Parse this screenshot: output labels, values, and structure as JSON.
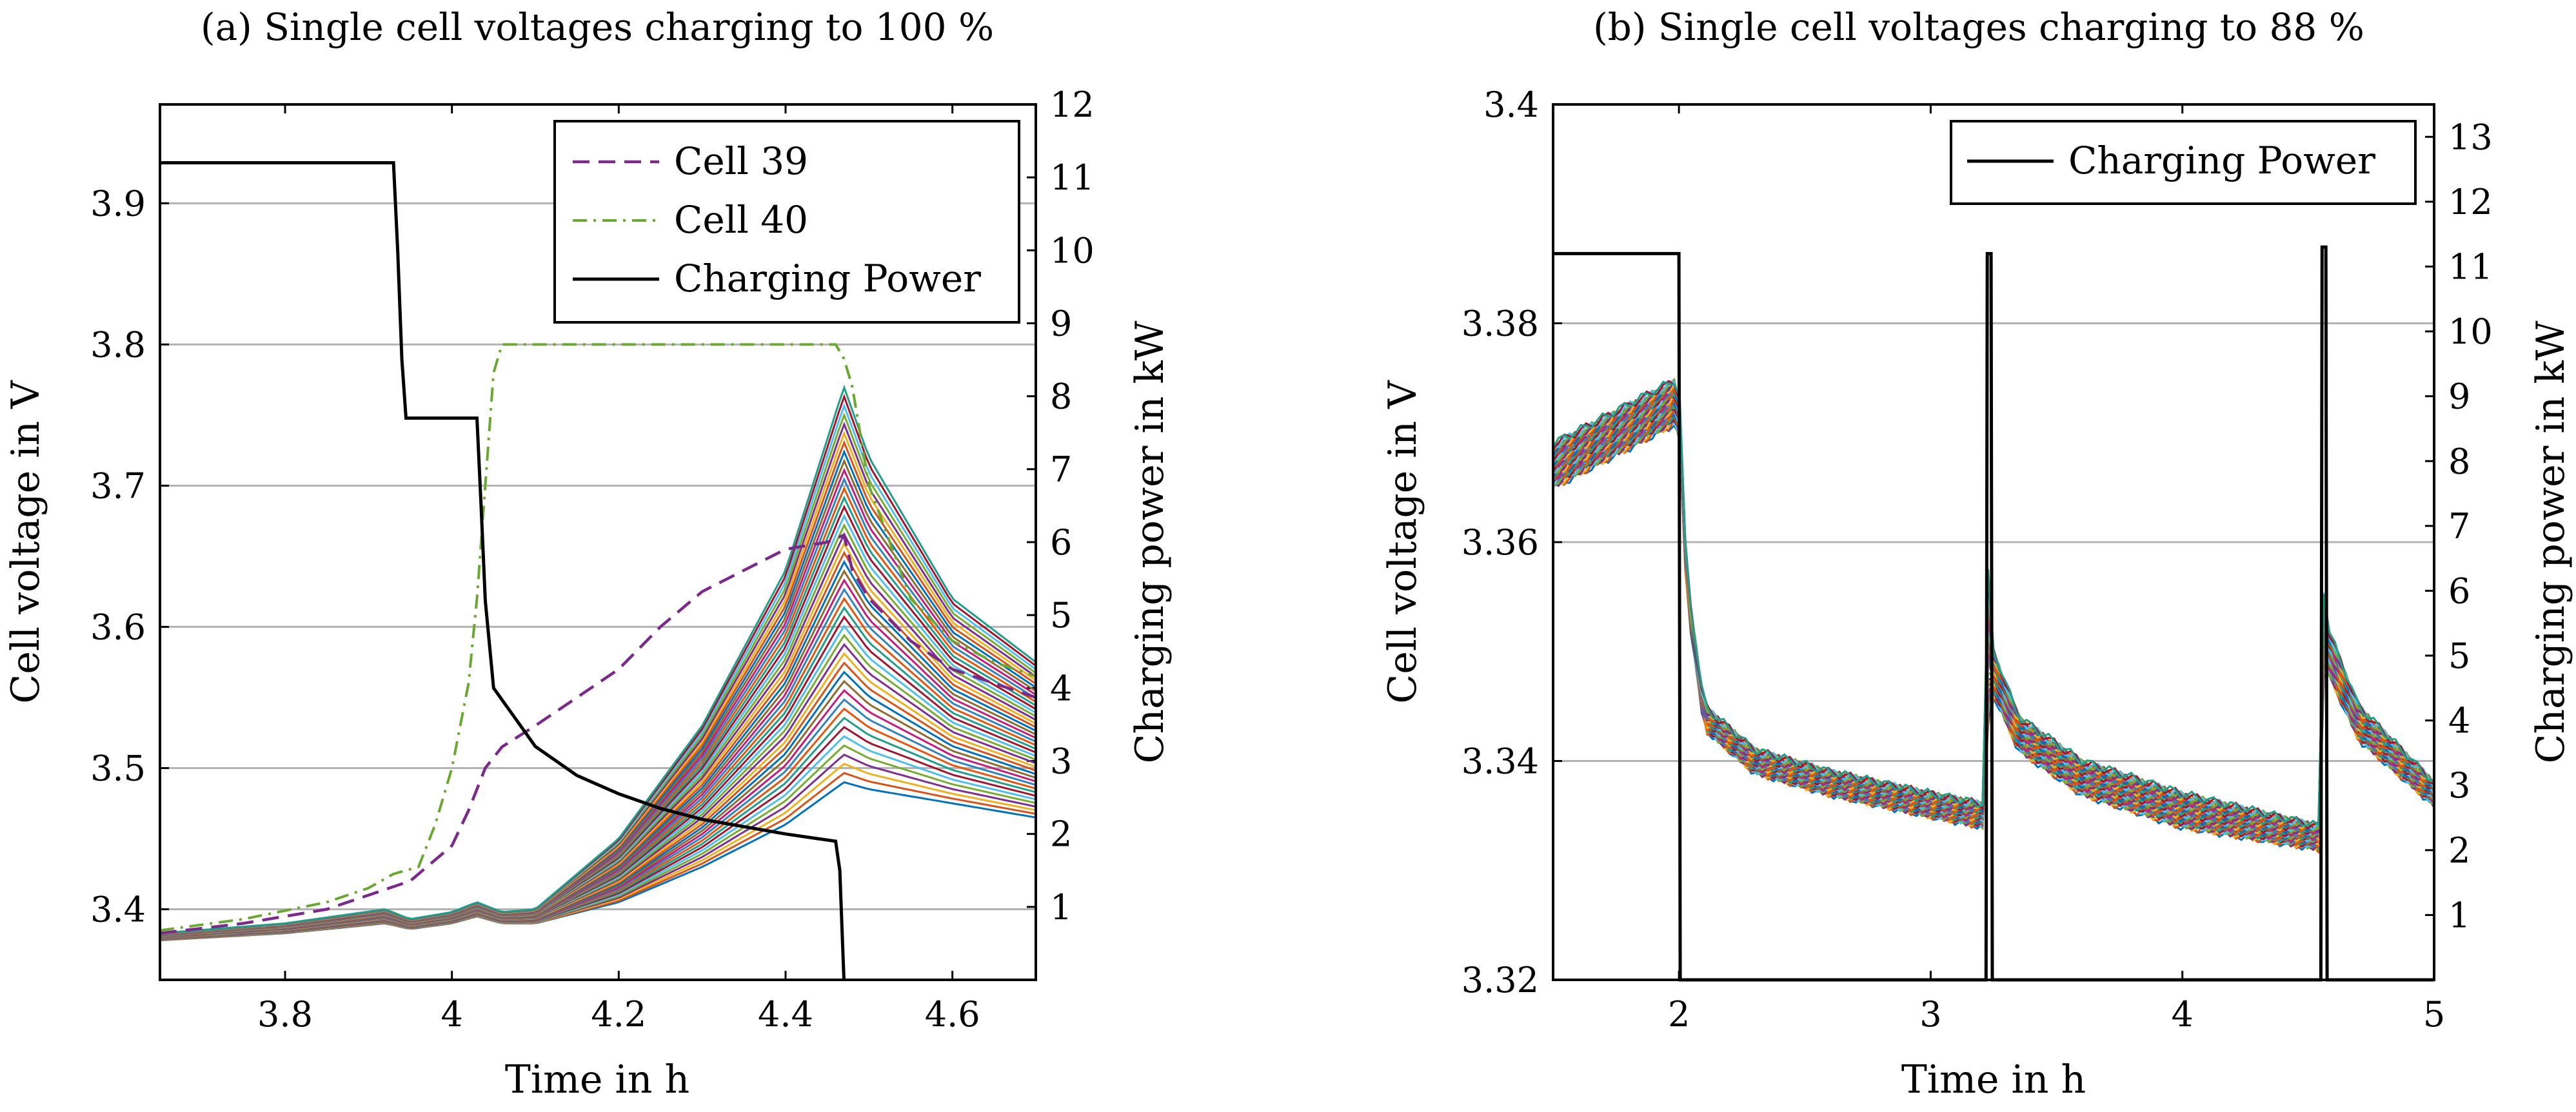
{
  "chart_data": [
    {
      "type": "line",
      "title": "(a) Single cell voltages charging to 100 %",
      "xlabel": "Time in h",
      "ylabel": "Cell voltage in V",
      "y2label": "Charging power in kW",
      "xlim": [
        3.65,
        4.7
      ],
      "ylim": [
        3.35,
        3.97
      ],
      "y2lim": [
        0,
        12
      ],
      "xticks": [
        "3.8",
        "4",
        "4.2",
        "4.4",
        "4.6"
      ],
      "yticks": [
        "3.4",
        "3.5",
        "3.6",
        "3.7",
        "3.8",
        "3.9"
      ],
      "y2ticks": [
        "1",
        "2",
        "3",
        "4",
        "5",
        "6",
        "7",
        "8",
        "9",
        "10",
        "11",
        "12"
      ],
      "grid": true,
      "legend_position": "top-right",
      "legend": [
        "Cell 39",
        "Cell 40",
        "Charging Power"
      ],
      "series": [
        {
          "name": "Cell 39",
          "axis": "left",
          "style": "dashed",
          "color": "#7b2a8c",
          "x": [
            3.65,
            3.75,
            3.85,
            3.9,
            3.95,
            4.0,
            4.02,
            4.04,
            4.06,
            4.1,
            4.15,
            4.2,
            4.25,
            4.3,
            4.35,
            4.4,
            4.45,
            4.47,
            4.48,
            4.5,
            4.55,
            4.6,
            4.65,
            4.7
          ],
          "values": [
            3.383,
            3.39,
            3.4,
            3.41,
            3.42,
            3.445,
            3.47,
            3.5,
            3.515,
            3.53,
            3.55,
            3.57,
            3.6,
            3.625,
            3.64,
            3.655,
            3.66,
            3.665,
            3.64,
            3.62,
            3.59,
            3.57,
            3.56,
            3.55
          ]
        },
        {
          "name": "Cell 40",
          "axis": "left",
          "style": "dashdot",
          "color": "#6aa832",
          "x": [
            3.65,
            3.75,
            3.85,
            3.9,
            3.93,
            3.96,
            3.98,
            4.0,
            4.02,
            4.03,
            4.04,
            4.05,
            4.06,
            4.1,
            4.2,
            4.3,
            4.4,
            4.46,
            4.47,
            4.48,
            4.5,
            4.55,
            4.6,
            4.65,
            4.7
          ],
          "values": [
            3.385,
            3.393,
            3.405,
            3.415,
            3.425,
            3.43,
            3.46,
            3.5,
            3.56,
            3.62,
            3.7,
            3.78,
            3.8,
            3.8,
            3.8,
            3.8,
            3.8,
            3.8,
            3.79,
            3.77,
            3.7,
            3.62,
            3.59,
            3.575,
            3.565
          ]
        },
        {
          "name": "Charging Power",
          "axis": "right",
          "style": "solid",
          "color": "#000000",
          "x": [
            3.65,
            3.93,
            3.935,
            3.94,
            3.945,
            4.03,
            4.035,
            4.04,
            4.05,
            4.1,
            4.15,
            4.2,
            4.25,
            4.3,
            4.35,
            4.4,
            4.46,
            4.465,
            4.47
          ],
          "values": [
            11.2,
            11.2,
            10.0,
            8.5,
            7.7,
            7.7,
            6.5,
            5.2,
            4.0,
            3.2,
            2.8,
            2.55,
            2.35,
            2.2,
            2.1,
            2.0,
            1.9,
            1.5,
            0.0
          ]
        }
      ],
      "cell_bundle": {
        "description_count": 96,
        "note": "many unlabeled single-cell voltage traces",
        "x": [
          3.65,
          3.8,
          3.92,
          3.95,
          4.0,
          4.03,
          4.06,
          4.1,
          4.2,
          4.3,
          4.4,
          4.47,
          4.5,
          4.6,
          4.7
        ],
        "low_values": [
          3.378,
          3.383,
          3.39,
          3.386,
          3.39,
          3.395,
          3.39,
          3.39,
          3.405,
          3.43,
          3.46,
          3.49,
          3.485,
          3.475,
          3.465
        ],
        "high_values": [
          3.383,
          3.39,
          3.4,
          3.393,
          3.398,
          3.405,
          3.398,
          3.4,
          3.45,
          3.53,
          3.64,
          3.77,
          3.72,
          3.62,
          3.575
        ]
      }
    },
    {
      "type": "line",
      "title": "(b) Single cell voltages charging to 88 %",
      "xlabel": "Time in h",
      "ylabel": "Cell voltage in V",
      "y2label": "Charging power in kW",
      "xlim": [
        1.5,
        5
      ],
      "ylim": [
        3.32,
        3.4
      ],
      "y2lim": [
        0,
        13.5
      ],
      "xticks": [
        "2",
        "3",
        "4",
        "5"
      ],
      "yticks": [
        "3.32",
        "3.34",
        "3.36",
        "3.38",
        "3.4"
      ],
      "y2ticks": [
        "1",
        "2",
        "3",
        "4",
        "5",
        "6",
        "7",
        "8",
        "9",
        "10",
        "11",
        "12",
        "13"
      ],
      "grid": true,
      "legend_position": "top-right",
      "legend": [
        "Charging Power"
      ],
      "series": [
        {
          "name": "Charging Power",
          "axis": "right",
          "style": "solid",
          "color": "#000000",
          "x": [
            1.5,
            2.0,
            2.005,
            3.22,
            3.225,
            3.24,
            3.245,
            4.55,
            4.555,
            4.57,
            4.575,
            5.0
          ],
          "values": [
            11.2,
            11.2,
            0.0,
            0.0,
            11.2,
            11.2,
            0.0,
            0.0,
            11.3,
            11.3,
            0.0,
            0.0
          ]
        }
      ],
      "cell_bundle": {
        "description_count": 96,
        "note": "many unlabeled single-cell voltage traces",
        "x": [
          1.5,
          1.75,
          2.0,
          2.03,
          2.1,
          2.3,
          2.6,
          3.0,
          3.22,
          3.23,
          3.25,
          3.35,
          3.6,
          4.0,
          4.55,
          4.56,
          4.58,
          4.7,
          5.0
        ],
        "low_values": [
          3.365,
          3.368,
          3.371,
          3.355,
          3.343,
          3.339,
          3.337,
          3.335,
          3.334,
          3.345,
          3.346,
          3.341,
          3.337,
          3.334,
          3.332,
          3.348,
          3.348,
          3.342,
          3.336
        ],
        "high_values": [
          3.369,
          3.372,
          3.375,
          3.357,
          3.345,
          3.341,
          3.339,
          3.337,
          3.336,
          3.362,
          3.35,
          3.344,
          3.34,
          3.337,
          3.334,
          3.356,
          3.352,
          3.345,
          3.338
        ]
      }
    }
  ]
}
